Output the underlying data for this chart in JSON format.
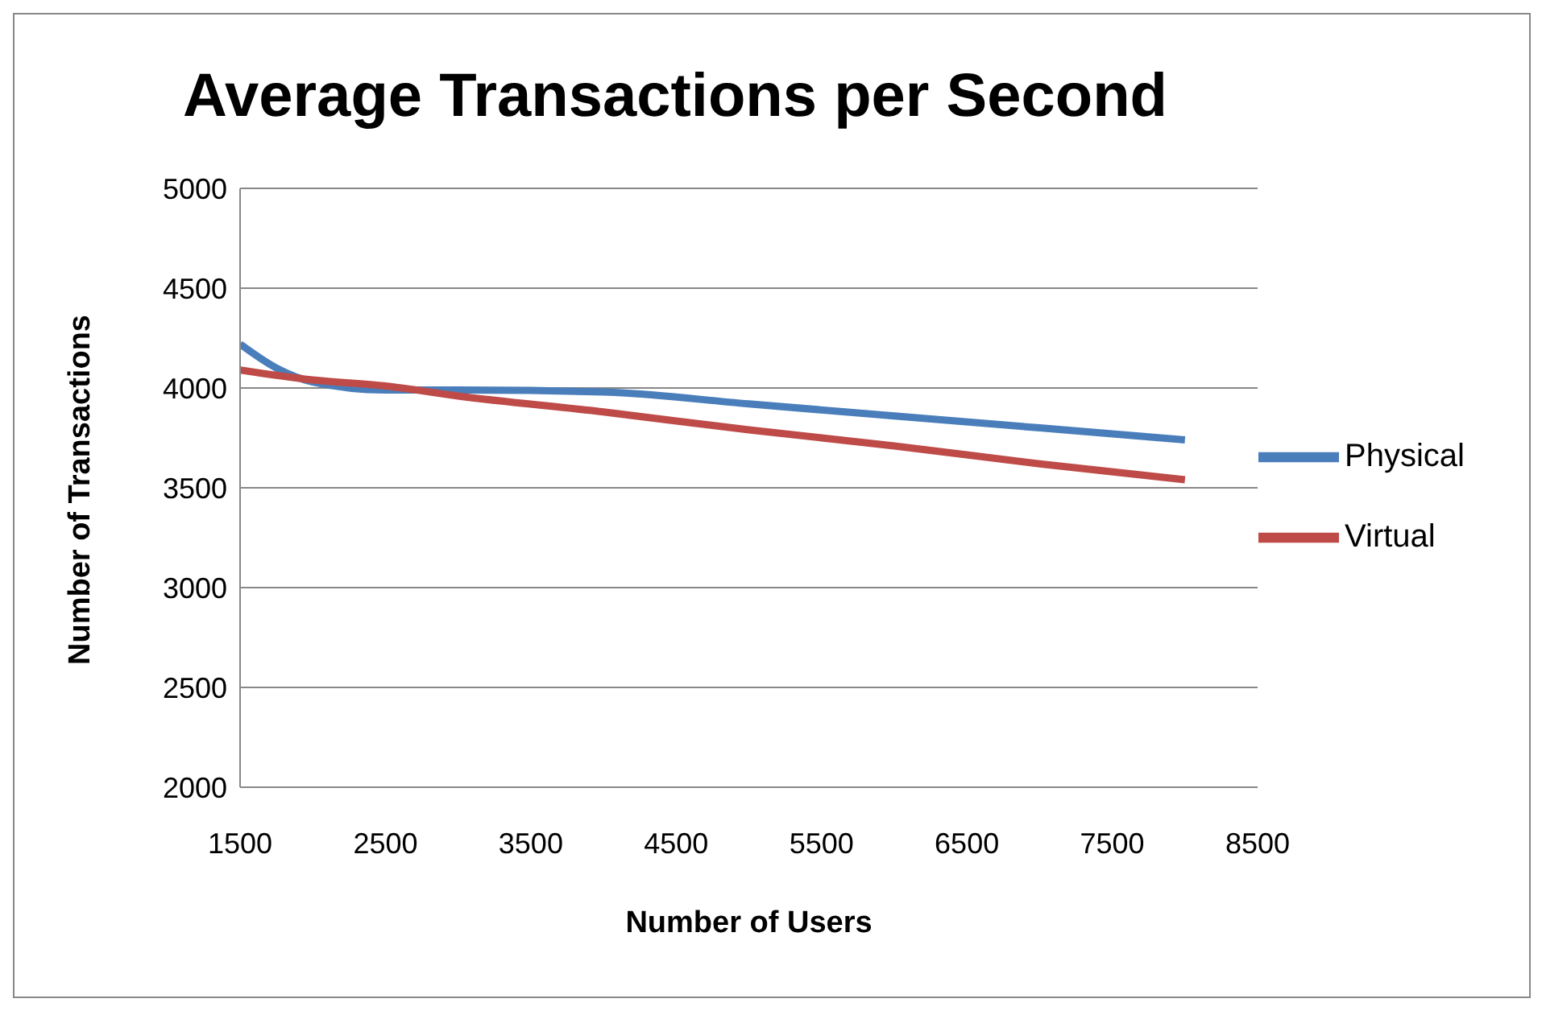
{
  "chart_data": {
    "type": "line",
    "title": "Average Transactions per Second",
    "xlabel": "Number of Users",
    "ylabel": "Number of Transactions",
    "series": [
      {
        "name": "Physical",
        "color": "#4a7ebb",
        "x": [
          1500,
          1750,
          2000,
          2500,
          3000,
          4000,
          5000,
          6000,
          7000,
          8000
        ],
        "values": [
          4220,
          4100,
          4030,
          3990,
          3990,
          3980,
          3920,
          3860,
          3800,
          3740
        ]
      },
      {
        "name": "Virtual",
        "color": "#be4b48",
        "x": [
          1500,
          2000,
          2500,
          3000,
          4000,
          5000,
          6000,
          7000,
          8000
        ],
        "values": [
          4090,
          4040,
          4010,
          3960,
          3880,
          3790,
          3710,
          3620,
          3540
        ]
      }
    ],
    "xlim": [
      1500,
      8500
    ],
    "xticks": [
      1500,
      2500,
      3500,
      4500,
      5500,
      6500,
      7500,
      8500
    ],
    "ylim": [
      2000,
      5000
    ],
    "yticks": [
      2000,
      2500,
      3000,
      3500,
      4000,
      4500,
      5000
    ],
    "grid": "y",
    "legend": "right",
    "marker": "none",
    "line_style": "solid"
  }
}
